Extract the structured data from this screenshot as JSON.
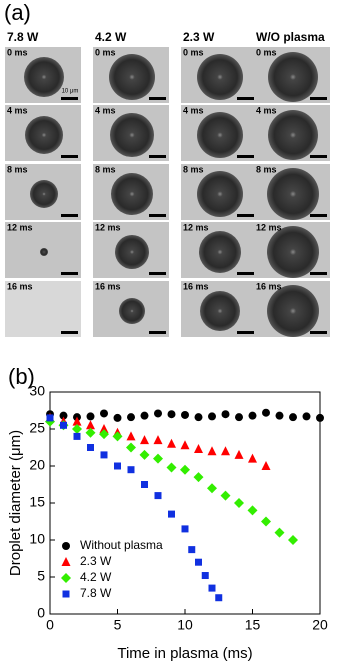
{
  "panel_a": {
    "label": "(a)",
    "columns": [
      "7.8 W",
      "4.2 W",
      "2.3 W",
      "W/O plasma"
    ],
    "rows": [
      "0 ms",
      "4 ms",
      "8 ms",
      "12 ms",
      "16 ms"
    ],
    "scale_label": "10 μm"
  },
  "chart_data": {
    "type": "scatter",
    "panel_label": "(b)",
    "x_label": "Time in plasma (ms)",
    "y_label": "Droplet diameter (μm)",
    "xlim": [
      0,
      20
    ],
    "ylim": [
      0,
      30
    ],
    "xticks": [
      0,
      5,
      10,
      15,
      20
    ],
    "yticks": [
      0,
      5,
      10,
      15,
      20,
      25,
      30
    ],
    "legend": "lower left",
    "series": [
      {
        "name": "Without plasma",
        "color": "#000000",
        "marker": "circle",
        "x": [
          0,
          1,
          2,
          3,
          4,
          5,
          6,
          7,
          8,
          9,
          10,
          11,
          12,
          13,
          14,
          15,
          16,
          17,
          18,
          19,
          20
        ],
        "values": [
          27,
          26.8,
          26.6,
          26.7,
          27.1,
          26.5,
          26.6,
          26.8,
          27.1,
          27,
          26.9,
          26.6,
          26.7,
          27,
          26.6,
          26.8,
          27.2,
          26.8,
          26.6,
          26.7,
          26.5
        ]
      },
      {
        "name": "2.3 W",
        "color": "#ff0000",
        "marker": "triangle",
        "x": [
          0,
          1,
          2,
          3,
          4,
          5,
          6,
          7,
          8,
          9,
          10,
          11,
          12,
          13,
          14,
          15,
          16
        ],
        "values": [
          26.5,
          26,
          26,
          25.5,
          25,
          24.5,
          24,
          23.5,
          23.5,
          23,
          22.8,
          22.3,
          22,
          22,
          21.5,
          21,
          20
        ]
      },
      {
        "name": "4.2 W",
        "color": "#33ee00",
        "marker": "diamond",
        "x": [
          0,
          1,
          2,
          3,
          4,
          5,
          6,
          7,
          8,
          9,
          10,
          11,
          12,
          13,
          14,
          15,
          16,
          17,
          18
        ],
        "values": [
          26,
          25.5,
          25,
          24.5,
          24.3,
          24,
          22.5,
          21.5,
          21,
          19.8,
          19.5,
          18.5,
          17,
          16,
          15,
          14,
          12.5,
          11,
          10
        ]
      },
      {
        "name": "7.8 W",
        "color": "#1030e0",
        "marker": "square",
        "x": [
          0,
          1,
          2,
          3,
          4,
          5,
          6,
          7,
          8,
          9,
          10,
          10.5,
          11,
          11.5,
          12,
          12.5
        ],
        "values": [
          26.5,
          25.5,
          24,
          22.5,
          21.5,
          20,
          19.5,
          17.5,
          16,
          13.5,
          11.5,
          8.7,
          7,
          5.2,
          3.5,
          2.2
        ]
      }
    ]
  }
}
